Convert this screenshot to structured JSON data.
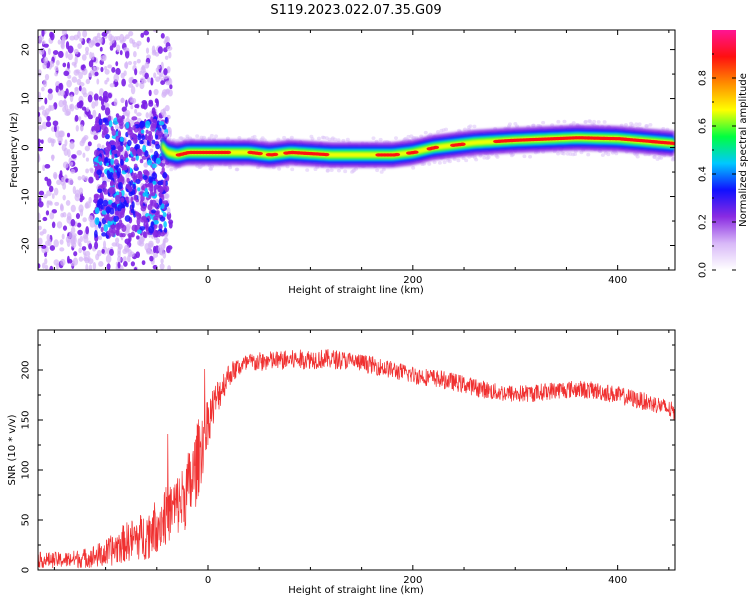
{
  "title": "S119.2023.022.07.35.G09",
  "chart_data": [
    {
      "type": "heatmap",
      "xlabel": "Height of straight line (km)",
      "ylabel": "Frequency (Hz)",
      "xlim": [
        -166,
        456
      ],
      "ylim": [
        -25,
        24
      ],
      "xticks": [
        0,
        200,
        400
      ],
      "yticks": [
        -20,
        -10,
        0,
        10,
        20
      ],
      "ridge": {
        "x": [
          -50,
          -40,
          -30,
          -20,
          0,
          40,
          60,
          80,
          120,
          160,
          180,
          200,
          220,
          240,
          260,
          300,
          360,
          400,
          456
        ],
        "freq": [
          2,
          -1,
          -1.5,
          -1,
          -1,
          -1,
          -1.5,
          -1,
          -1.5,
          -1.5,
          -1.5,
          -1,
          0,
          0.5,
          1,
          1.5,
          2,
          1.8,
          0.8
        ]
      },
      "colorbar": {
        "label": "Normalized spectral amplitude",
        "range": [
          0,
          1
        ],
        "ticks": [
          0.0,
          0.2,
          0.4,
          0.6,
          0.8
        ],
        "colors": [
          "#ffffff",
          "#d8b8f8",
          "#8a2be2",
          "#1010ff",
          "#00c8ff",
          "#00ff40",
          "#ffff00",
          "#ff8c00",
          "#ff1010",
          "#ff1493"
        ]
      }
    },
    {
      "type": "line",
      "xlabel": "Height of straight line (km)",
      "ylabel": "SNR (10 * v/v)",
      "xlim": [
        -166,
        456
      ],
      "ylim": [
        0,
        240
      ],
      "xticks": [
        0,
        200,
        400
      ],
      "yticks": [
        0,
        50,
        100,
        150,
        200
      ],
      "color": "#f03030",
      "envelope": {
        "x": [
          -166,
          -140,
          -120,
          -100,
          -80,
          -60,
          -50,
          -40,
          -30,
          -25,
          -20,
          -15,
          -10,
          -5,
          0,
          10,
          20,
          30,
          40,
          60,
          80,
          100,
          120,
          140,
          160,
          180,
          200,
          220,
          240,
          260,
          280,
          300,
          320,
          340,
          360,
          380,
          400,
          420,
          440,
          456
        ],
        "mean": [
          10,
          10,
          12,
          16,
          28,
          35,
          45,
          55,
          65,
          70,
          80,
          90,
          110,
          130,
          150,
          175,
          195,
          203,
          207,
          209,
          210,
          211,
          211,
          209,
          205,
          200,
          195,
          192,
          188,
          183,
          178,
          176,
          177,
          180,
          181,
          179,
          175,
          170,
          165,
          158
        ],
        "noise": [
          8,
          8,
          10,
          14,
          20,
          25,
          28,
          30,
          32,
          34,
          38,
          40,
          40,
          35,
          25,
          18,
          12,
          10,
          10,
          10,
          10,
          10,
          10,
          9,
          9,
          9,
          9,
          9,
          9,
          9,
          9,
          9,
          9,
          9,
          9,
          9,
          9,
          9,
          9,
          9
        ]
      }
    }
  ]
}
